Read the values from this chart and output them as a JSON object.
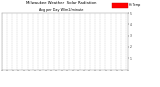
{
  "title": "Milwaukee Weather  Solar Radiation",
  "subtitle": "Avg per Day W/m2/minute",
  "bg_color": "#ffffff",
  "plot_bg_color": "#ffffff",
  "grid_color": "#bbbbbb",
  "legend_label": "Hi Temp",
  "ylim": [
    0,
    500
  ],
  "yticks": [
    100,
    200,
    300,
    400,
    500
  ],
  "ytick_labels": [
    "1",
    "2",
    "3",
    "4",
    "5"
  ],
  "legend_box_color": "#ff0000",
  "dot_color_red": "#ff0000",
  "dot_color_black": "#000000",
  "n_points": 730,
  "vline_interval": 30,
  "dot_size": 0.4
}
